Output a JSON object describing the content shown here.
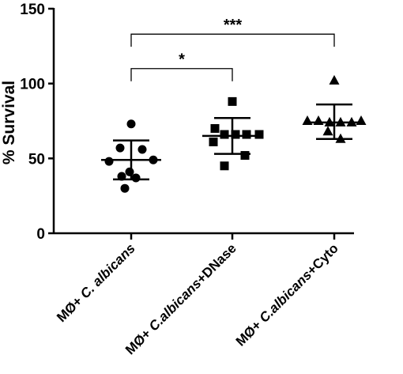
{
  "chart_data": {
    "type": "scatter",
    "ylabel": "% Survival",
    "ylim": [
      0,
      150
    ],
    "yticks": [
      0,
      50,
      100,
      150
    ],
    "grid": false,
    "categories": [
      {
        "prefix": "MØ+ ",
        "italic": "C. albicans",
        "suffix": ""
      },
      {
        "prefix": "MØ+ ",
        "italic": "C.albicans",
        "suffix": "+DNase"
      },
      {
        "prefix": "MØ+ ",
        "italic": "C.albicans",
        "suffix": "+Cyto"
      }
    ],
    "series": [
      {
        "marker": "circle",
        "points": [
          73,
          56,
          57,
          49,
          48,
          41,
          37,
          38,
          30
        ],
        "mean": 49,
        "sd_upper": 62,
        "sd_lower": 36
      },
      {
        "marker": "square",
        "points": [
          88,
          70,
          66,
          66,
          66,
          66,
          61,
          52,
          45
        ],
        "mean": 65,
        "sd_upper": 77,
        "sd_lower": 53
      },
      {
        "marker": "triangle",
        "points": [
          102,
          75,
          75,
          74,
          74,
          74,
          75,
          68,
          63
        ],
        "mean": 74,
        "sd_upper": 86,
        "sd_lower": 63
      }
    ],
    "significance": [
      {
        "label": "*",
        "from": 0,
        "to": 1,
        "y": 110
      },
      {
        "label": "***",
        "from": 0,
        "to": 2,
        "y": 133
      }
    ]
  }
}
